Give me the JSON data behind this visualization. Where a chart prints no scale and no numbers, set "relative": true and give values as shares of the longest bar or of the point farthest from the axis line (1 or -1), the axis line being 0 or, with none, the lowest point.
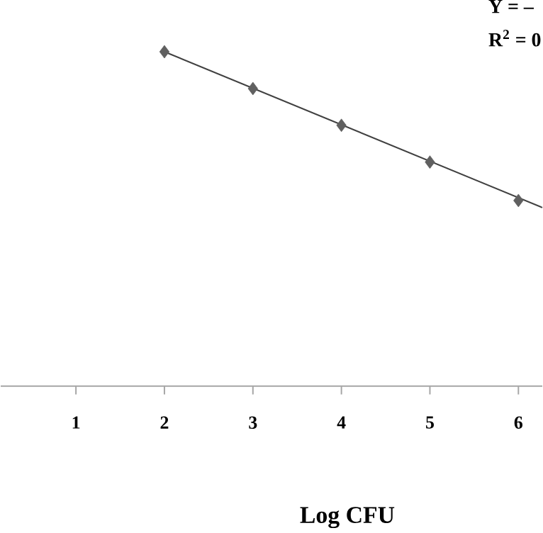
{
  "chart_data": {
    "type": "scatter",
    "xlabel": "Log CFU",
    "relative": true,
    "marker": "diamond",
    "xlim": [
      0.15,
      6.27
    ],
    "xticks": [
      1,
      2,
      3,
      4,
      5,
      6
    ],
    "series": [
      {
        "color": "#606060",
        "x": [
          2,
          3,
          4,
          5,
          6
        ],
        "values": [
          1,
          0.89,
          0.78,
          0.67,
          0.555
        ]
      },
      {
        "type": "line",
        "color": "#404040",
        "x": [
          2,
          6.27
        ],
        "values": [
          1,
          0.534
        ],
        "marker": "none"
      }
    ],
    "annotations": [
      "Y = –",
      "R$^{2}$ = 0"
    ]
  }
}
